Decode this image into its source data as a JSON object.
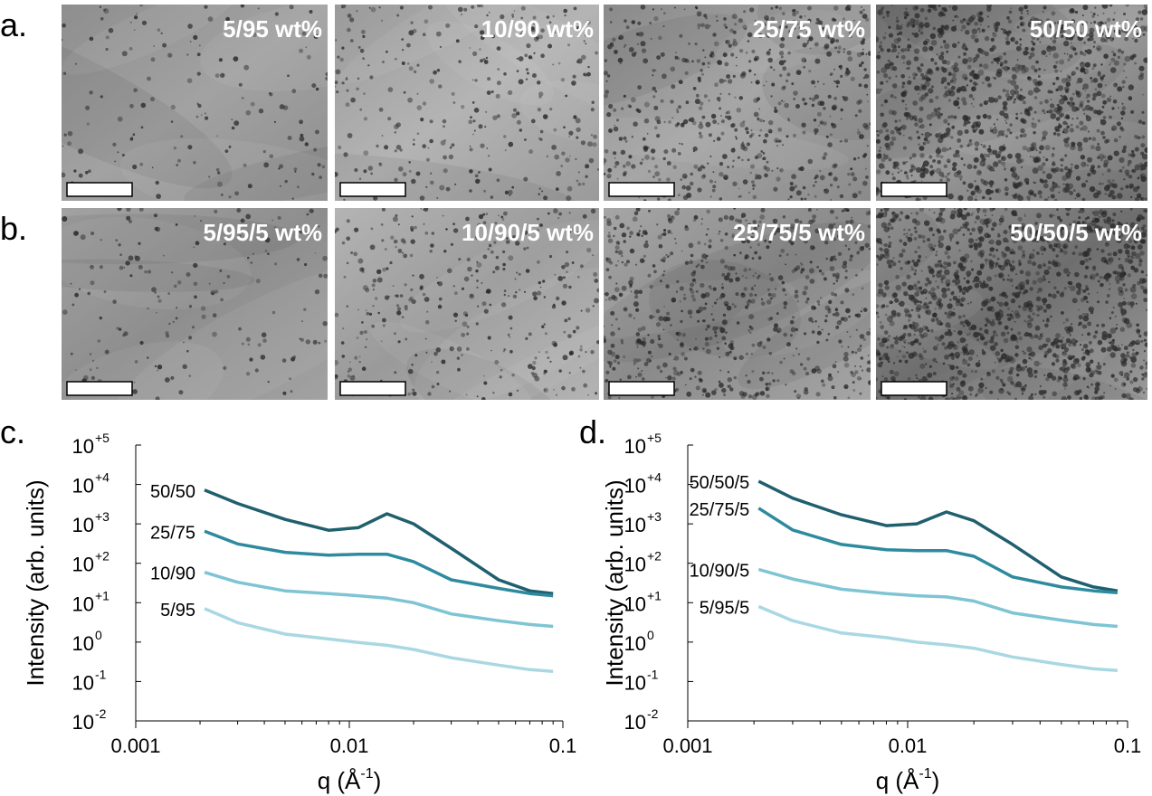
{
  "panels": {
    "row_a": {
      "label": "a.",
      "images": [
        "5/95 wt%",
        "10/90 wt%",
        "25/75 wt%",
        "50/50 wt%"
      ]
    },
    "row_b": {
      "label": "b.",
      "images": [
        "5/95/5 wt%",
        "10/90/5 wt%",
        "25/75/5 wt%",
        "50/50/5 wt%"
      ]
    }
  },
  "chart_data": [
    {
      "type": "line",
      "panel_label": "c.",
      "y_label": "Intensity (arb. units)",
      "x_label": "q (Å",
      "x_label_sup": "-1",
      "x_label_end": ")",
      "log_x": true,
      "log_y": true,
      "xlim": [
        0.001,
        0.1
      ],
      "xticks": [
        0.001,
        0.01,
        0.1
      ],
      "ylim": [
        0.01,
        100000
      ],
      "yticks": [
        {
          "value": 0.01,
          "label": "10",
          "sup": "-2"
        },
        {
          "value": 0.1,
          "label": "10",
          "sup": "-1"
        },
        {
          "value": 1,
          "label": "10",
          "sup": "0"
        },
        {
          "value": 10,
          "label": "10",
          "sup": "+1"
        },
        {
          "value": 100,
          "label": "10",
          "sup": "+2"
        },
        {
          "value": 1000,
          "label": "10",
          "sup": "+3"
        },
        {
          "value": 10000,
          "label": "10",
          "sup": "+4"
        },
        {
          "value": 100000,
          "label": "10",
          "sup": "+5"
        }
      ],
      "x": [
        0.0021,
        0.003,
        0.005,
        0.008,
        0.011,
        0.015,
        0.02,
        0.03,
        0.05,
        0.07,
        0.09
      ],
      "series": [
        {
          "name": "50/50",
          "color": "#1f5f6e",
          "values": [
            7200,
            3300,
            1300,
            690,
            800,
            1800,
            1000,
            240,
            38,
            20,
            17
          ]
        },
        {
          "name": "25/75",
          "color": "#2e8a9e",
          "values": [
            650,
            310,
            190,
            160,
            170,
            170,
            110,
            38,
            23,
            17,
            15
          ]
        },
        {
          "name": "10/90",
          "color": "#7ec4d4",
          "values": [
            59,
            33,
            20,
            17,
            15,
            13,
            10,
            5.2,
            3.5,
            2.8,
            2.5
          ]
        },
        {
          "name": "5/95",
          "color": "#a9d8e3",
          "values": [
            7.1,
            3.1,
            1.6,
            1.2,
            0.98,
            0.83,
            0.65,
            0.4,
            0.26,
            0.2,
            0.18
          ]
        }
      ]
    },
    {
      "type": "line",
      "panel_label": "d.",
      "y_label": "Intensity (arb. units)",
      "x_label": "q (Å",
      "x_label_sup": "-1",
      "x_label_end": ")",
      "log_x": true,
      "log_y": true,
      "xlim": [
        0.001,
        0.1
      ],
      "xticks": [
        0.001,
        0.01,
        0.1
      ],
      "ylim": [
        0.01,
        100000
      ],
      "yticks": [
        {
          "value": 0.01,
          "label": "10",
          "sup": "-2"
        },
        {
          "value": 0.1,
          "label": "10",
          "sup": "-1"
        },
        {
          "value": 1,
          "label": "10",
          "sup": "0"
        },
        {
          "value": 10,
          "label": "10",
          "sup": "+1"
        },
        {
          "value": 100,
          "label": "10",
          "sup": "+2"
        },
        {
          "value": 1000,
          "label": "10",
          "sup": "+3"
        },
        {
          "value": 10000,
          "label": "10",
          "sup": "+4"
        },
        {
          "value": 100000,
          "label": "10",
          "sup": "+5"
        }
      ],
      "x": [
        0.0021,
        0.003,
        0.005,
        0.008,
        0.011,
        0.015,
        0.02,
        0.03,
        0.05,
        0.07,
        0.09
      ],
      "series": [
        {
          "name": "50/50/5",
          "color": "#1f5f6e",
          "values": [
            12000,
            4500,
            1700,
            900,
            1000,
            2000,
            1200,
            300,
            45,
            25,
            20
          ]
        },
        {
          "name": "25/75/5",
          "color": "#2e8a9e",
          "values": [
            2500,
            700,
            300,
            220,
            210,
            210,
            150,
            45,
            25,
            20,
            18
          ]
        },
        {
          "name": "10/90/5",
          "color": "#7ec4d4",
          "values": [
            70,
            40,
            22,
            17,
            15,
            14,
            11,
            5.5,
            3.6,
            2.8,
            2.5
          ]
        },
        {
          "name": "5/95/5",
          "color": "#a9d8e3",
          "values": [
            8,
            3.5,
            1.7,
            1.3,
            1.0,
            0.85,
            0.7,
            0.42,
            0.27,
            0.21,
            0.19
          ]
        }
      ]
    }
  ]
}
